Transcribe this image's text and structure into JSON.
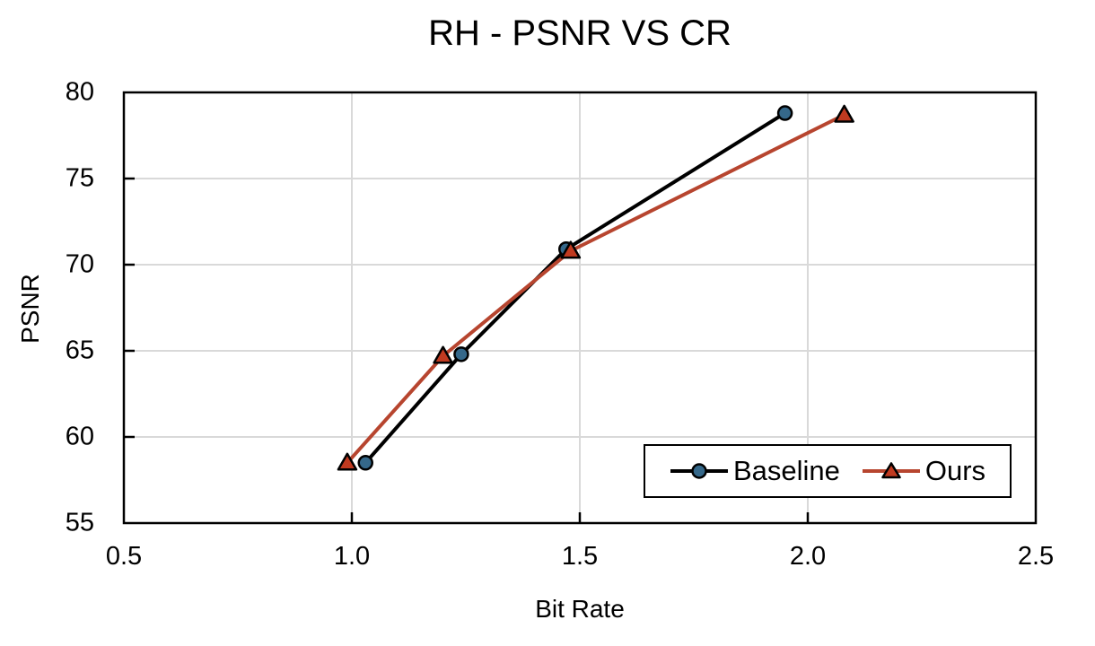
{
  "title": "RH - PSNR VS CR",
  "chart_data": {
    "type": "line",
    "title": "RH - PSNR VS CR",
    "xlabel": "Bit Rate",
    "ylabel": "PSNR",
    "xlim": [
      0.5,
      2.5
    ],
    "ylim": [
      55,
      80
    ],
    "x_ticks": [
      0.5,
      1.0,
      1.5,
      2.0,
      2.5
    ],
    "y_ticks": [
      55,
      60,
      65,
      70,
      75,
      80
    ],
    "grid": true,
    "grid_color": "#D9D9D9",
    "axis_color": "#000000",
    "legend_position": "inside-bottom-right",
    "series": [
      {
        "name": "Baseline",
        "marker": "circle",
        "line_color": "#000000",
        "marker_fill": "#35688A",
        "marker_stroke": "#000000",
        "points": [
          [
            1.03,
            58.5
          ],
          [
            1.24,
            64.8
          ],
          [
            1.47,
            70.9
          ],
          [
            1.95,
            78.8
          ]
        ]
      },
      {
        "name": "Ours",
        "marker": "triangle",
        "line_color": "#B7452F",
        "marker_fill": "#C03A20",
        "marker_stroke": "#000000",
        "points": [
          [
            0.99,
            58.5
          ],
          [
            1.2,
            64.7
          ],
          [
            1.48,
            70.8
          ],
          [
            2.08,
            78.7
          ]
        ]
      }
    ]
  }
}
